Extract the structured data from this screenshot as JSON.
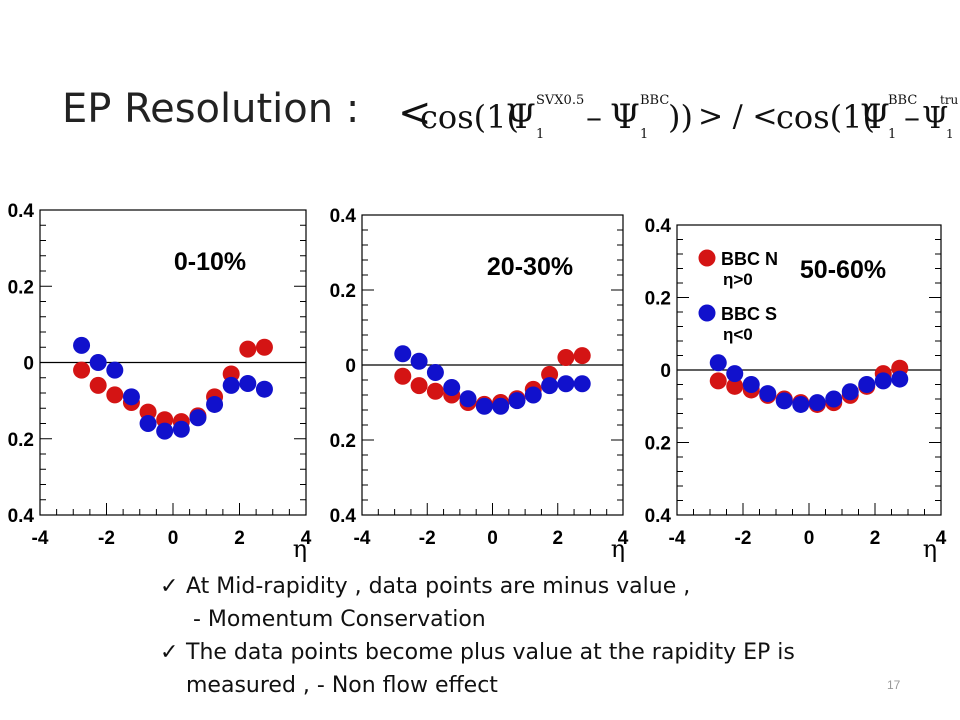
{
  "title": "EP Resolution :",
  "formula": {
    "lbracket": "<",
    "cos1": "cos(1(",
    "psi": "Ψ",
    "sup1": "SVX0.5",
    "sub1": "1",
    "minus": "–",
    "sup2": "BBC",
    "sub2": "1",
    "close1": "))",
    "sep": "> / <",
    "cos2": "cos(1(",
    "sup3": "BBC",
    "sub3": "1",
    "sup4": "true",
    "sub4": "1",
    "close2": "))",
    "rbracket": ">"
  },
  "chart_data": [
    {
      "type": "scatter",
      "label": "0-10%",
      "xlabel": "η",
      "xlim": [
        -4,
        4
      ],
      "ylim": [
        -0.4,
        0.4
      ],
      "xticks": [
        "-4",
        "-2",
        "0",
        "2",
        "4"
      ],
      "yticks": [
        "0.4",
        "0.2",
        "0",
        "0.2",
        "0.4"
      ],
      "series": [
        {
          "name": "BBC N",
          "color": "#d41414",
          "x": [
            -2.75,
            -2.25,
            -1.75,
            -1.25,
            -0.75,
            -0.25,
            0.25,
            0.75,
            1.25,
            1.75,
            2.25,
            2.75
          ],
          "y": [
            -0.02,
            -0.06,
            -0.085,
            -0.105,
            -0.13,
            -0.15,
            -0.155,
            -0.14,
            -0.09,
            -0.03,
            0.035,
            0.04
          ]
        },
        {
          "name": "BBC S",
          "color": "#1111cc",
          "x": [
            -2.75,
            -2.25,
            -1.75,
            -1.25,
            -0.75,
            -0.25,
            0.25,
            0.75,
            1.25,
            1.75,
            2.25,
            2.75
          ],
          "y": [
            0.045,
            0.0,
            -0.02,
            -0.09,
            -0.16,
            -0.18,
            -0.175,
            -0.145,
            -0.11,
            -0.06,
            -0.055,
            -0.07
          ]
        }
      ]
    },
    {
      "type": "scatter",
      "label": "20-30%",
      "xlabel": "η",
      "xlim": [
        -4,
        4
      ],
      "ylim": [
        -0.4,
        0.4
      ],
      "xticks": [
        "-4",
        "-2",
        "0",
        "2",
        "4"
      ],
      "yticks": [
        "0.4",
        "0.2",
        "0",
        "0.2",
        "0.4"
      ],
      "series": [
        {
          "name": "BBC N",
          "color": "#d41414",
          "x": [
            -2.75,
            -2.25,
            -1.75,
            -1.25,
            -0.75,
            -0.25,
            0.25,
            0.75,
            1.25,
            1.75,
            2.25,
            2.75
          ],
          "y": [
            -0.03,
            -0.055,
            -0.07,
            -0.08,
            -0.1,
            -0.105,
            -0.1,
            -0.09,
            -0.065,
            -0.025,
            0.02,
            0.025
          ]
        },
        {
          "name": "BBC S",
          "color": "#1111cc",
          "x": [
            -2.75,
            -2.25,
            -1.75,
            -1.25,
            -0.75,
            -0.25,
            0.25,
            0.75,
            1.25,
            1.75,
            2.25,
            2.75
          ],
          "y": [
            0.03,
            0.01,
            -0.02,
            -0.06,
            -0.09,
            -0.11,
            -0.11,
            -0.095,
            -0.08,
            -0.055,
            -0.05,
            -0.05
          ]
        }
      ]
    },
    {
      "type": "scatter",
      "label": "50-60%",
      "xlabel": "η",
      "xlim": [
        -4,
        4
      ],
      "ylim": [
        -0.4,
        0.4
      ],
      "xticks": [
        "-4",
        "-2",
        "0",
        "2",
        "4"
      ],
      "yticks": [
        "0.4",
        "0.2",
        "0",
        "0.2",
        "0.4"
      ],
      "legend": [
        {
          "name": "BBC  N",
          "note": "η>0",
          "color": "#d41414"
        },
        {
          "name": "BBC  S",
          "note": "η<0",
          "color": "#1111cc"
        }
      ],
      "series": [
        {
          "name": "BBC N",
          "color": "#d41414",
          "x": [
            -2.75,
            -2.25,
            -1.75,
            -1.25,
            -0.75,
            -0.25,
            0.25,
            0.75,
            1.25,
            1.75,
            2.25,
            2.75
          ],
          "y": [
            -0.03,
            -0.045,
            -0.055,
            -0.07,
            -0.08,
            -0.09,
            -0.095,
            -0.09,
            -0.07,
            -0.045,
            -0.01,
            0.005
          ]
        },
        {
          "name": "BBC S",
          "color": "#1111cc",
          "x": [
            -2.75,
            -2.25,
            -1.75,
            -1.25,
            -0.75,
            -0.25,
            0.25,
            0.75,
            1.25,
            1.75,
            2.25,
            2.75
          ],
          "y": [
            0.02,
            -0.01,
            -0.04,
            -0.065,
            -0.085,
            -0.095,
            -0.09,
            -0.08,
            -0.06,
            -0.04,
            -0.03,
            -0.025
          ]
        }
      ]
    }
  ],
  "bullets": [
    {
      "line1": "At Mid-rapidity , data points are minus value ,",
      "line2": " - Momentum Conservation"
    },
    {
      "line1": "The data points become plus value at the rapidity EP is",
      "line2": "measured , - Non flow effect"
    }
  ],
  "check_glyph": "✓",
  "page_number": "17"
}
